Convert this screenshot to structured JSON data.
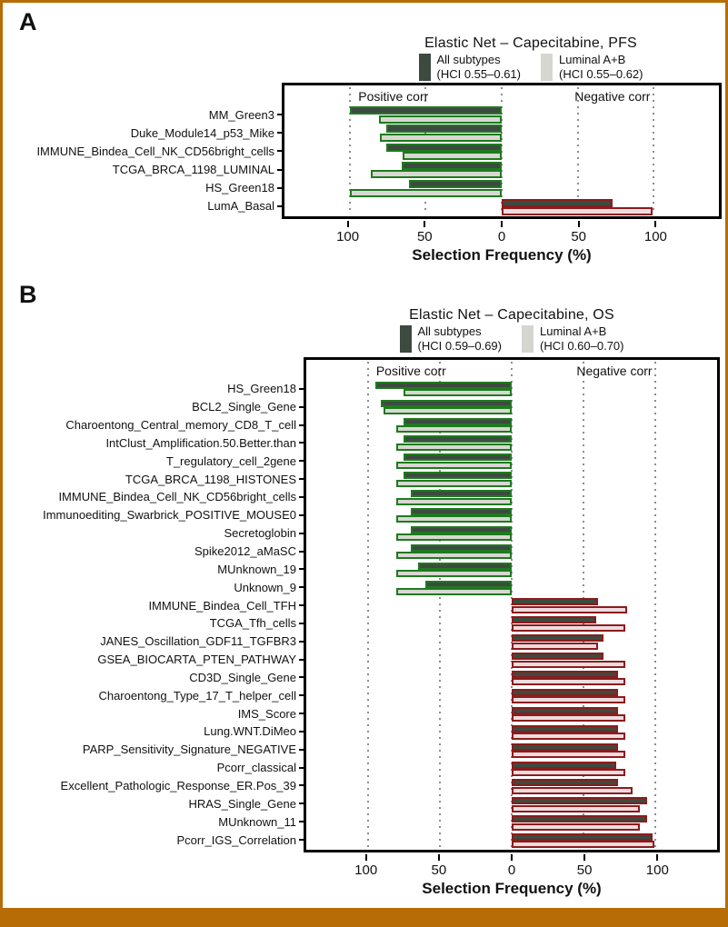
{
  "figure": {
    "frame_border_color": "#b86c05",
    "bottom_bar_color": "#b86c05",
    "background": "#ffffff"
  },
  "colors": {
    "all_subtypes_fill": "#3c4a40",
    "positive_bar_border": "#1f7a1f",
    "positive_luminal_fill": "#d8d8d2",
    "negative_bar_border": "#8c1c1c",
    "negative_luminal_fill": "#ecdce0",
    "gridline": "#8c8c8c"
  },
  "chart_data": [
    {
      "panel": "A",
      "type": "bar",
      "orientation": "horizontal-diverging",
      "title": "Elastic Net – Capecitabine, PFS",
      "xlabel": "Selection Frequency (%)",
      "xticks": [
        "100",
        "50",
        "0",
        "50",
        "100"
      ],
      "xlim_note": "diverging axis: left of 0 = positive correlation, right of 0 = negative correlation, 0–100% each side",
      "grid": "dotted vertical lines at 100/50/0/50/100",
      "legend_position": "top",
      "annotations": {
        "positive": "Positive corr",
        "negative": "Negative corr"
      },
      "legend": [
        {
          "label": "All subtypes",
          "hci": "(HCI 0.55–0.61)"
        },
        {
          "label": "Luminal A+B",
          "hci": "(HCI 0.55–0.62)"
        }
      ],
      "series": [
        "All subtypes",
        "Luminal A+B"
      ],
      "rows": [
        {
          "category": "MM_Green3",
          "direction": "positive",
          "values": [
            100,
            81
          ]
        },
        {
          "category": "Duke_Module14_p53_Mike",
          "direction": "positive",
          "values": [
            76,
            80
          ]
        },
        {
          "category": "IMMUNE_Bindea_Cell_NK_CD56bright_cells",
          "direction": "positive",
          "values": [
            76,
            65
          ]
        },
        {
          "category": "TCGA_BRCA_1198_LUMINAL",
          "direction": "positive",
          "values": [
            66,
            86
          ]
        },
        {
          "category": "HS_Green18",
          "direction": "positive",
          "values": [
            61,
            100
          ]
        },
        {
          "category": "LumA_Basal",
          "direction": "negative",
          "values": [
            73,
            99
          ]
        }
      ]
    },
    {
      "panel": "B",
      "type": "bar",
      "orientation": "horizontal-diverging",
      "title": "Elastic Net – Capecitabine, OS",
      "xlabel": "Selection Frequency (%)",
      "xticks": [
        "100",
        "50",
        "0",
        "50",
        "100"
      ],
      "xlim_note": "diverging axis: left of 0 = positive correlation, right of 0 = negative correlation, 0–100% each side",
      "grid": "dotted vertical lines at 100/50/0/50/100",
      "legend_position": "top",
      "annotations": {
        "positive": "Positive corr",
        "negative": "Negative corr"
      },
      "legend": [
        {
          "label": "All subtypes",
          "hci": "(HCI 0.59–0.69)"
        },
        {
          "label": "Luminal A+B",
          "hci": "(HCI 0.60–0.70)"
        }
      ],
      "series": [
        "All subtypes",
        "Luminal A+B"
      ],
      "rows": [
        {
          "category": "HS_Green18",
          "direction": "positive",
          "values": [
            95,
            75
          ]
        },
        {
          "category": "BCL2_Single_Gene",
          "direction": "positive",
          "values": [
            91,
            89
          ]
        },
        {
          "category": "Charoentong_Central_memory_CD8_T_cell",
          "direction": "positive",
          "values": [
            75,
            80
          ]
        },
        {
          "category": "IntClust_Amplification.50.Better.than",
          "direction": "positive",
          "values": [
            75,
            80
          ]
        },
        {
          "category": "T_regulatory_cell_2gene",
          "direction": "positive",
          "values": [
            75,
            80
          ]
        },
        {
          "category": "TCGA_BRCA_1198_HISTONES",
          "direction": "positive",
          "values": [
            75,
            80
          ]
        },
        {
          "category": "IMMUNE_Bindea_Cell_NK_CD56bright_cells",
          "direction": "positive",
          "values": [
            70,
            80
          ]
        },
        {
          "category": "Immunoediting_Swarbrick_POSITIVE_MOUSE0",
          "direction": "positive",
          "values": [
            70,
            80
          ]
        },
        {
          "category": "Secretoglobin",
          "direction": "positive",
          "values": [
            70,
            80
          ]
        },
        {
          "category": "Spike2012_aMaSC",
          "direction": "positive",
          "values": [
            70,
            80
          ]
        },
        {
          "category": "MUnknown_19",
          "direction": "positive",
          "values": [
            65,
            80
          ]
        },
        {
          "category": "Unknown_9",
          "direction": "positive",
          "values": [
            60,
            80
          ]
        },
        {
          "category": "IMMUNE_Bindea_Cell_TFH",
          "direction": "negative",
          "values": [
            60,
            80
          ]
        },
        {
          "category": "TCGA_Tfh_cells",
          "direction": "negative",
          "values": [
            59,
            79
          ]
        },
        {
          "category": "JANES_Oscillation_GDF11_TGFBR3",
          "direction": "negative",
          "values": [
            64,
            60
          ]
        },
        {
          "category": "GSEA_BIOCARTA_PTEN_PATHWAY",
          "direction": "negative",
          "values": [
            64,
            79
          ]
        },
        {
          "category": "CD3D_Single_Gene",
          "direction": "negative",
          "values": [
            74,
            79
          ]
        },
        {
          "category": "Charoentong_Type_17_T_helper_cell",
          "direction": "negative",
          "values": [
            74,
            79
          ]
        },
        {
          "category": "IMS_Score",
          "direction": "negative",
          "values": [
            74,
            79
          ]
        },
        {
          "category": "Lung.WNT.DiMeo",
          "direction": "negative",
          "values": [
            74,
            79
          ]
        },
        {
          "category": "PARP_Sensitivity_Signature_NEGATIVE",
          "direction": "negative",
          "values": [
            74,
            79
          ]
        },
        {
          "category": "Pcorr_classical",
          "direction": "negative",
          "values": [
            73,
            79
          ]
        },
        {
          "category": "Excellent_Pathologic_Response_ER.Pos_39",
          "direction": "negative",
          "values": [
            74,
            84
          ]
        },
        {
          "category": "HRAS_Single_Gene",
          "direction": "negative",
          "values": [
            94,
            89
          ]
        },
        {
          "category": "MUnknown_11",
          "direction": "negative",
          "values": [
            94,
            89
          ]
        },
        {
          "category": "Pcorr_IGS_Correlation",
          "direction": "negative",
          "values": [
            98,
            99
          ]
        }
      ]
    }
  ]
}
